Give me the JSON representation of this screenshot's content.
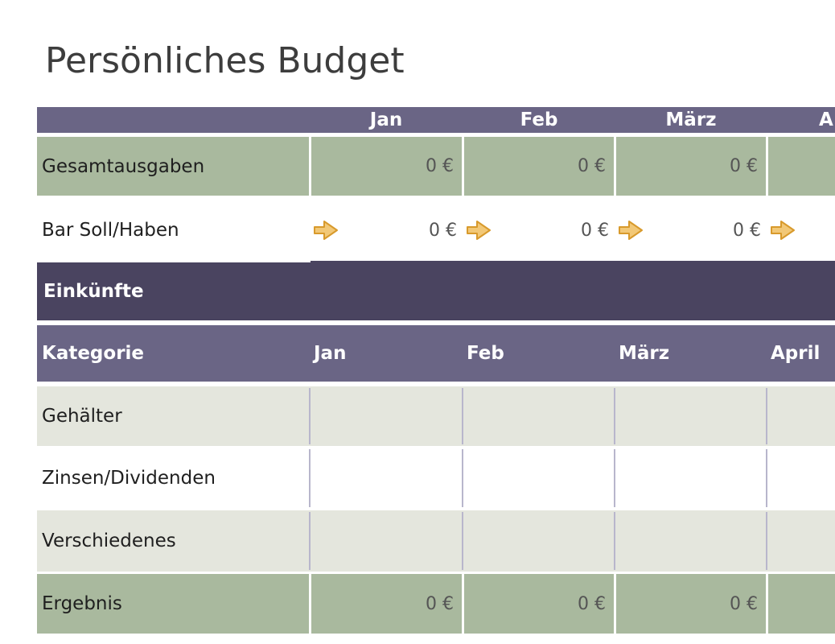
{
  "title": "Persönliches Budget",
  "colors": {
    "header_purple": "#6a6585",
    "section_dark": "#4a4460",
    "total_green": "#a9b99e",
    "row_band": "#e4e6dd",
    "arrow_gold": "#e8a93a",
    "text": "#1f1f1f",
    "value_text": "#555555"
  },
  "summary": {
    "months": [
      "Jan",
      "Feb",
      "März",
      "A"
    ],
    "rows": [
      {
        "label": "Gesamtausgaben",
        "values": [
          "0 €",
          "0 €",
          "0 €"
        ]
      },
      {
        "label": "Bar Soll/Haben",
        "values": [
          "0 €",
          "0 €",
          "0 €"
        ],
        "icon": "arrow-right-icon"
      }
    ]
  },
  "income": {
    "section_title": "Einkünfte",
    "header": {
      "category": "Kategorie",
      "months": [
        "Jan",
        "Feb",
        "März",
        "April"
      ]
    },
    "rows": [
      {
        "label": "Gehälter"
      },
      {
        "label": "Zinsen/Dividenden"
      },
      {
        "label": "Verschiedenes"
      }
    ],
    "total": {
      "label": "Ergebnis",
      "values": [
        "0 €",
        "0 €",
        "0 €"
      ]
    }
  }
}
